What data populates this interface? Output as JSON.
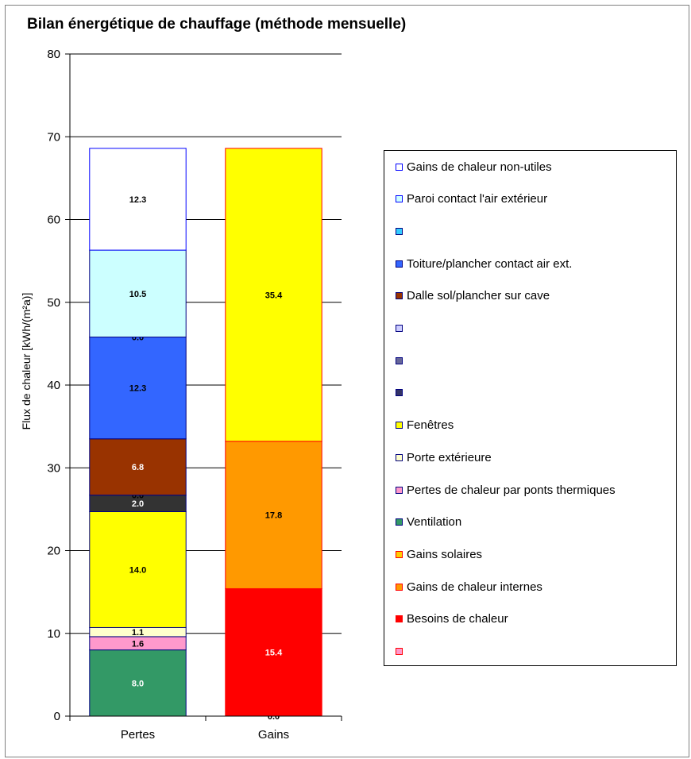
{
  "chart_data": {
    "type": "bar",
    "stacked": true,
    "title": "Bilan énergétique  de chauffage (méthode mensuelle)",
    "ylabel": "Flux de chaleur [kWh/(m²a)]",
    "xlabel": "",
    "ylim": [
      0,
      80
    ],
    "yticks": [
      0,
      10,
      20,
      30,
      40,
      50,
      60,
      70,
      80
    ],
    "grid": true,
    "legend_position": "right",
    "categories": [
      "Pertes",
      "Gains"
    ],
    "stacks": [
      {
        "category": "Pertes",
        "segments": [
          {
            "value": 8.0,
            "label": "8.0",
            "color": "#339966",
            "border": "#000080",
            "label_color": "#ffffff"
          },
          {
            "value": 1.6,
            "label": "1.6",
            "color": "#ff99cc",
            "border": "#000080",
            "label_color": "#000000"
          },
          {
            "value": 1.1,
            "label": "1.1",
            "color": "#ffffcc",
            "border": "#000080",
            "label_color": "#000000"
          },
          {
            "value": 14.0,
            "label": "14.0",
            "color": "#ffff00",
            "border": "#000080",
            "label_color": "#000000"
          },
          {
            "value": 2.0,
            "label": "2.0",
            "color": "#333333",
            "border": "#000080",
            "label_color": "#ffffff"
          },
          {
            "value": 0.0,
            "label": "0.0",
            "color": "#333399",
            "border": "#000080",
            "label_color": "#000000"
          },
          {
            "value": 6.8,
            "label": "6.8",
            "color": "#993300",
            "border": "#000080",
            "label_color": "#ffffff"
          },
          {
            "value": 12.3,
            "label": "12.3",
            "color": "#3366ff",
            "border": "#000080",
            "label_color": "#000000"
          },
          {
            "value": 0.0,
            "label": "0.0",
            "color": "#33ccff",
            "border": "#000080",
            "label_color": "#000000"
          },
          {
            "value": 10.5,
            "label": "10.5",
            "color": "#ccffff",
            "border": "#000080",
            "label_color": "#000000"
          },
          {
            "value": 12.3,
            "label": "12.3",
            "color": "#ffffff",
            "border": "#0000ff",
            "label_color": "#000000"
          }
        ]
      },
      {
        "category": "Gains",
        "segments": [
          {
            "value": 0.0,
            "label": "0.0",
            "color": "#ff99cc",
            "border": "#ff0000",
            "label_color": "#000000"
          },
          {
            "value": 15.4,
            "label": "15.4",
            "color": "#ff0000",
            "border": "#ff0000",
            "label_color": "#ffffff"
          },
          {
            "value": 17.8,
            "label": "17.8",
            "color": "#ff9900",
            "border": "#ff0000",
            "label_color": "#000000"
          },
          {
            "value": 35.4,
            "label": "35.4",
            "color": "#ffff00",
            "border": "#ff0000",
            "label_color": "#000000"
          }
        ]
      }
    ],
    "legend": [
      {
        "label": "Gains de chaleur non-utiles",
        "color": "#ffffff",
        "border": "#0000ff"
      },
      {
        "label": "Paroi contact l'air extérieur",
        "color": "#ccffff",
        "border": "#0000ff"
      },
      {
        "label": "",
        "color": "#33ccff",
        "border": "#000080"
      },
      {
        "label": "Toiture/plancher contact air ext.",
        "color": "#3366ff",
        "border": "#000080"
      },
      {
        "label": "Dalle sol/plancher sur cave",
        "color": "#993300",
        "border": "#000080"
      },
      {
        "label": "",
        "color": "#ccccff",
        "border": "#000080"
      },
      {
        "label": "",
        "color": "#666699",
        "border": "#000080"
      },
      {
        "label": "",
        "color": "#333366",
        "border": "#000080"
      },
      {
        "label": "Fenêtres",
        "color": "#ffff00",
        "border": "#000080"
      },
      {
        "label": "Porte extérieure",
        "color": "#ffffcc",
        "border": "#000080"
      },
      {
        "label": "Pertes de chaleur par ponts thermiques",
        "color": "#ff99cc",
        "border": "#000080"
      },
      {
        "label": "Ventilation",
        "color": "#339966",
        "border": "#000080"
      },
      {
        "label": "Gains solaires",
        "color": "#ffcc00",
        "border": "#ff0000"
      },
      {
        "label": "Gains de chaleur internes",
        "color": "#ff9900",
        "border": "#ff0000"
      },
      {
        "label": "Besoins de chaleur",
        "color": "#ff0000",
        "border": "#ff0000"
      },
      {
        "label": "",
        "color": "#ff99cc",
        "border": "#ff0000"
      }
    ]
  }
}
